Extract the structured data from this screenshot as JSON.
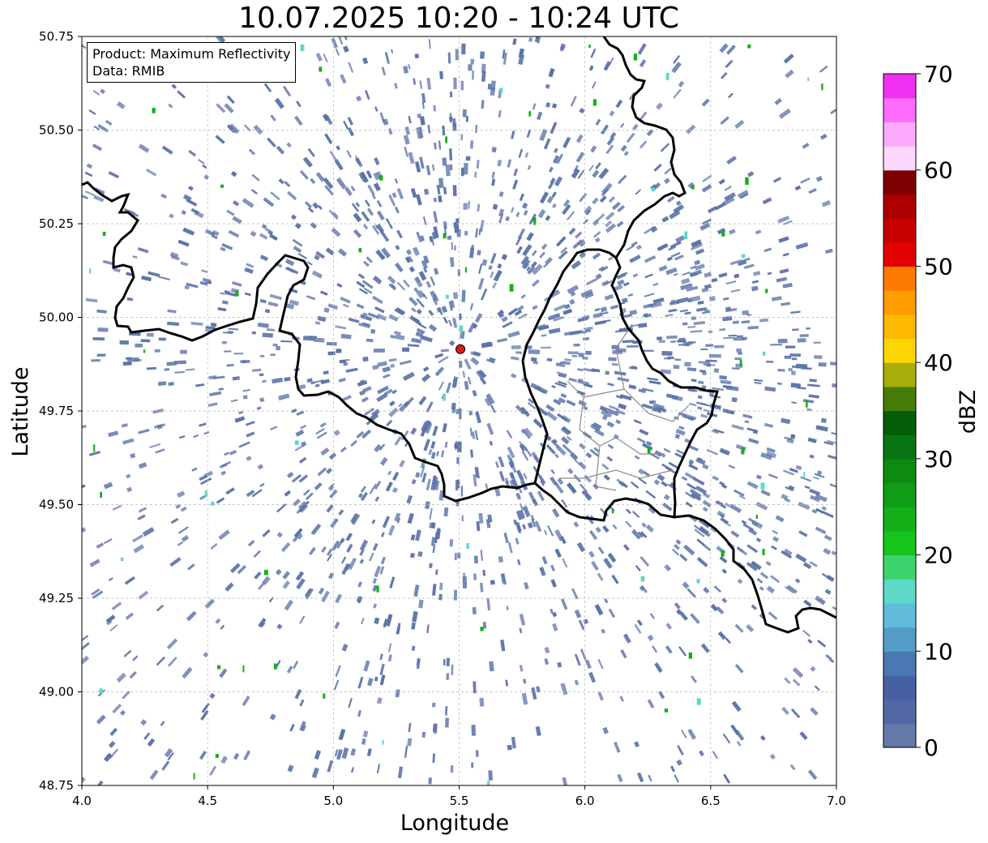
{
  "title": "10.07.2025 10:20 - 10:24 UTC",
  "info": {
    "product": "Product: Maximum Reflectivity",
    "data": "Data: RMIB"
  },
  "axes": {
    "xlabel": "Longitude",
    "ylabel": "Latitude",
    "xlim": [
      4.0,
      7.0
    ],
    "ylim": [
      48.75,
      50.75
    ],
    "xticks": [
      "4.0",
      "4.5",
      "5.0",
      "5.5",
      "6.0",
      "6.5",
      "7.0"
    ],
    "yticks": [
      "50.75",
      "50.50",
      "50.25",
      "50.00",
      "49.75",
      "49.50",
      "49.25",
      "49.00",
      "48.75"
    ],
    "grid": true
  },
  "radar_site": {
    "lon": 5.505,
    "lat": 49.915,
    "color": "#e11b1b"
  },
  "colorbar": {
    "label": "dBZ",
    "range": [
      0,
      70
    ],
    "ticks": [
      "0",
      "10",
      "20",
      "30",
      "40",
      "50",
      "60",
      "70"
    ],
    "colors": [
      "#6379a8",
      "#5268a6",
      "#4561a4",
      "#4a78b2",
      "#549cc6",
      "#60bcda",
      "#5ed8c8",
      "#3dd46e",
      "#16c51c",
      "#14b01a",
      "#109d16",
      "#0c8a12",
      "#087512",
      "#055e08",
      "#467d08",
      "#a7ad0a",
      "#fbd600",
      "#fcb900",
      "#fd9d00",
      "#fd7b00",
      "#e30000",
      "#c80000",
      "#ac0000",
      "#7c0000",
      "#fdd8fd",
      "#fdaafd",
      "#fd6cfd",
      "#f030f0"
    ]
  },
  "colors": {
    "echo": "#5b73a8",
    "border": "#000000",
    "region_border": "#8a8a8a"
  }
}
